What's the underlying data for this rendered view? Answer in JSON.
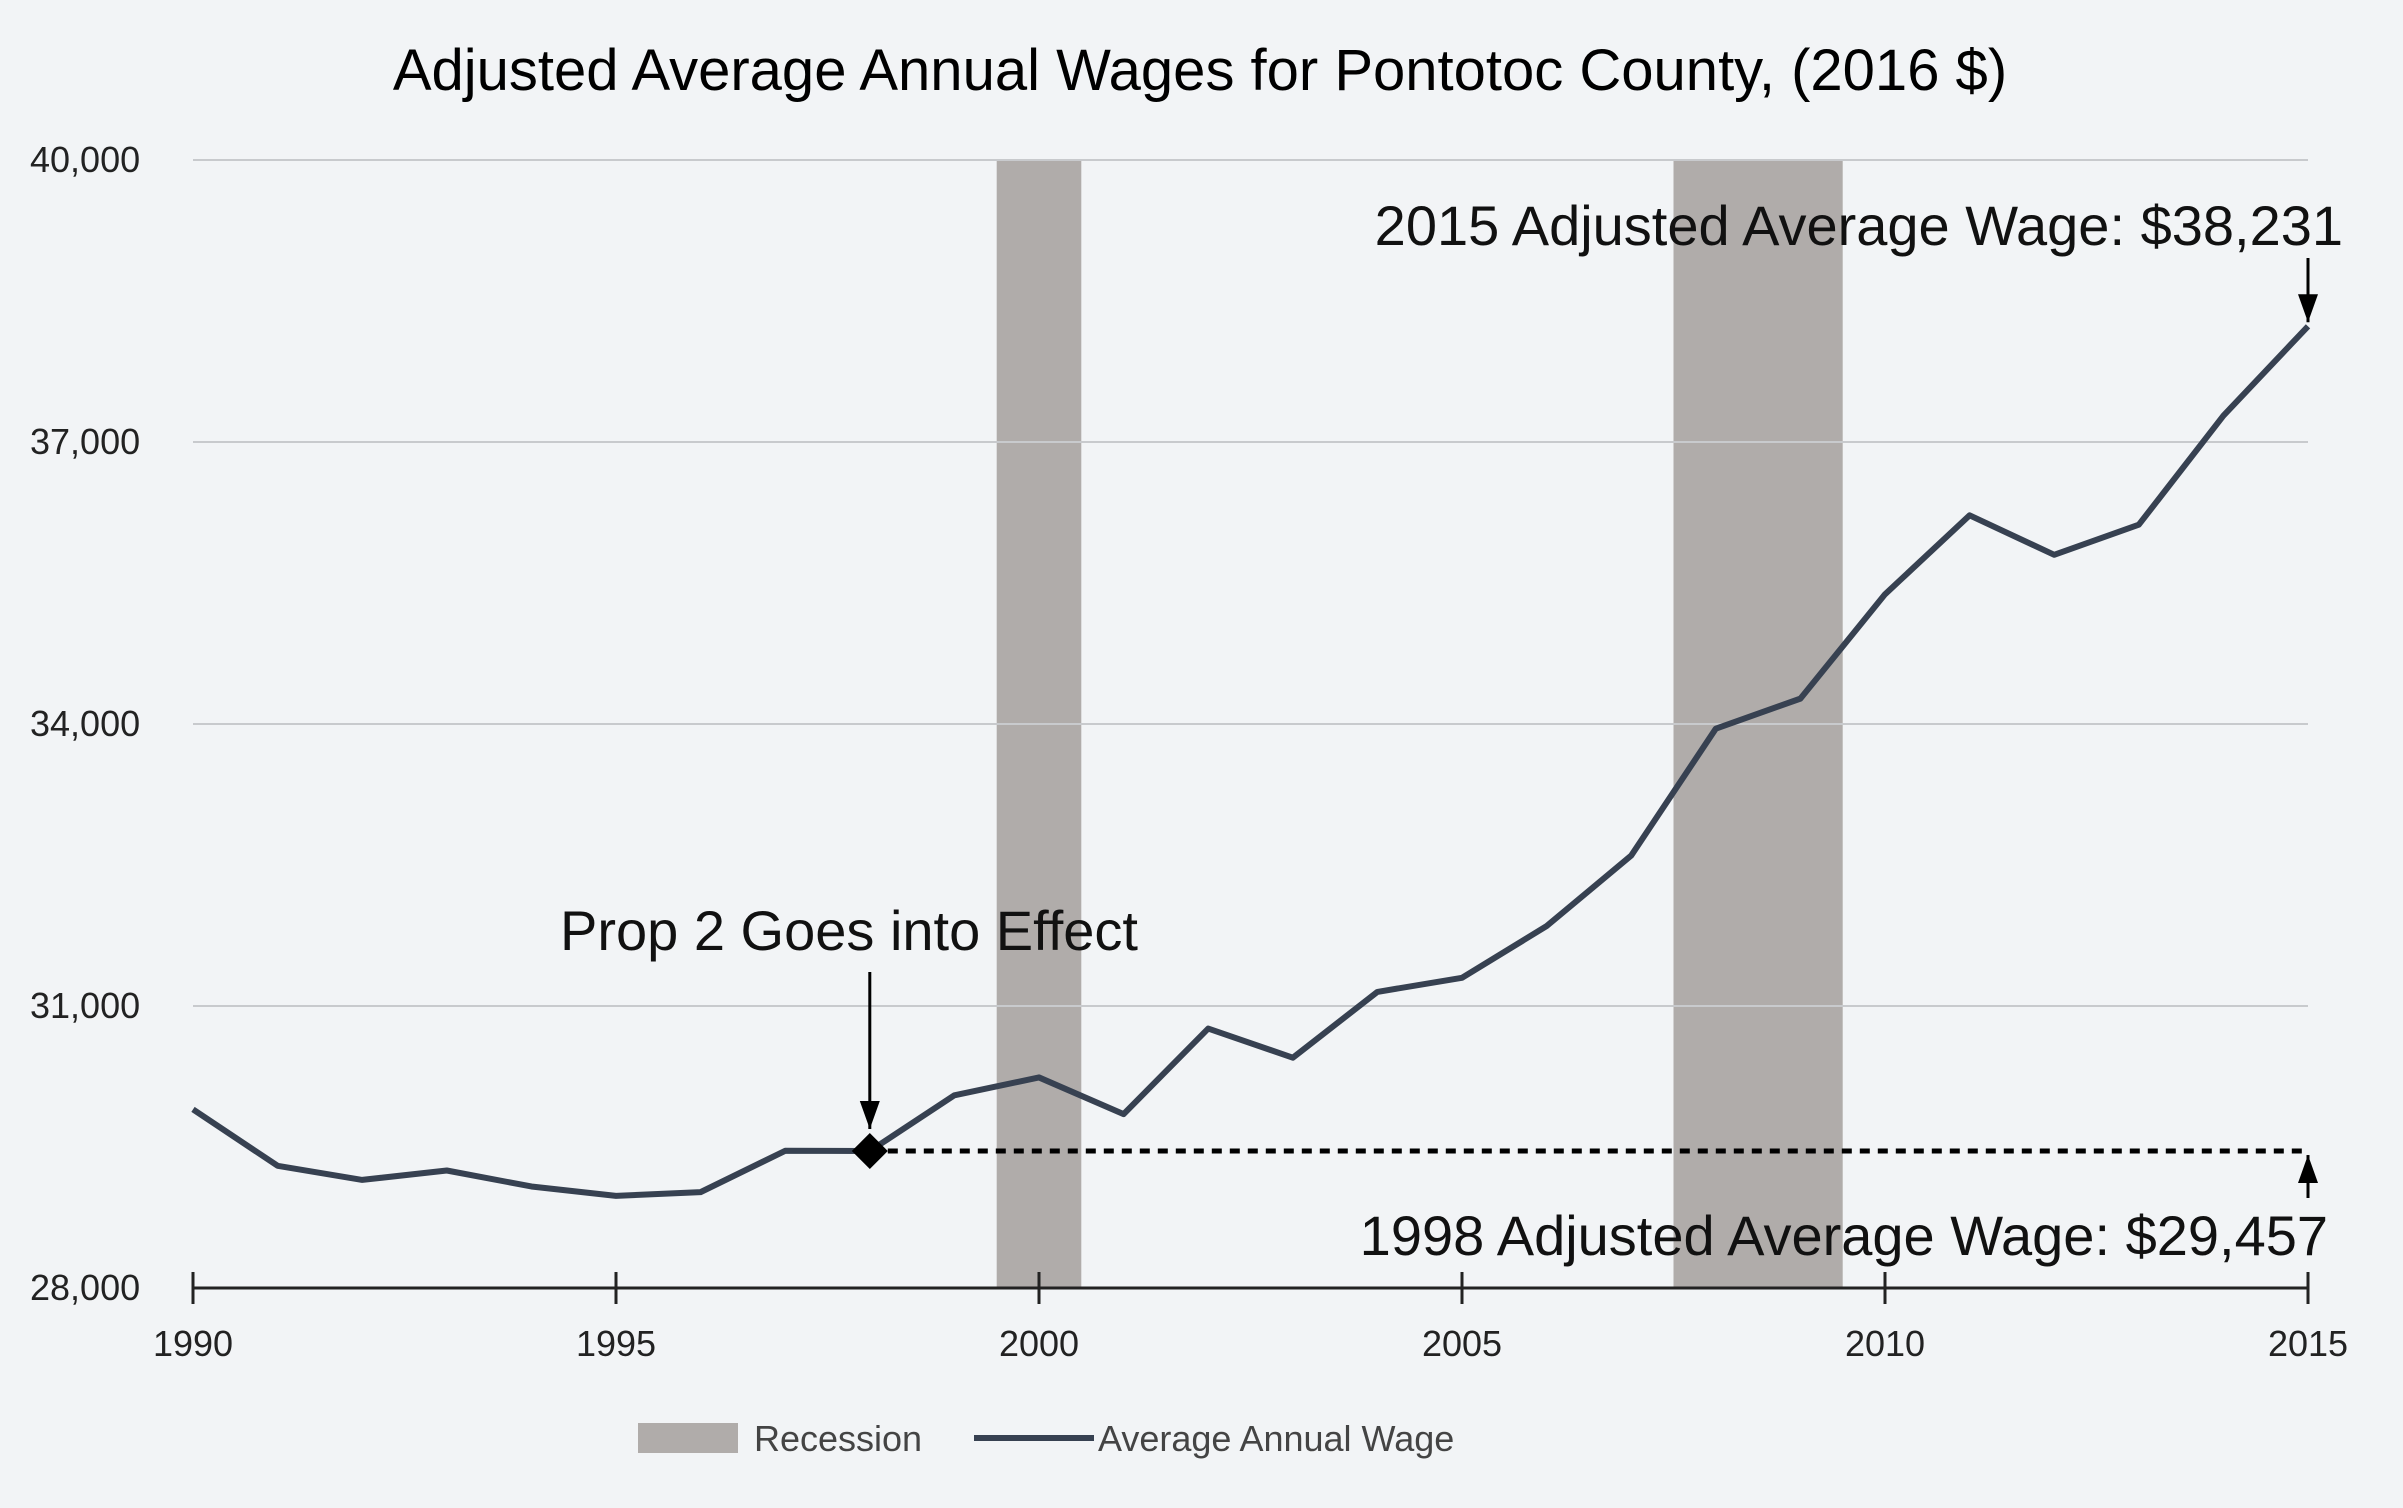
{
  "chart_data": {
    "type": "line",
    "title": "Adjusted Average Annual Wages for Pontotoc County, (2016 $)",
    "xlabel": "",
    "ylabel": "",
    "xlim": [
      1990,
      2015
    ],
    "ylim": [
      28000,
      40000
    ],
    "grid": true,
    "x_ticks": [
      1990,
      1995,
      2000,
      2005,
      2010,
      2015
    ],
    "y_ticks": [
      {
        "value": 28000,
        "label": "28,000"
      },
      {
        "value": 31000,
        "label": "31,000"
      },
      {
        "value": 34000,
        "label": "34,000"
      },
      {
        "value": 37000,
        "label": "37,000"
      },
      {
        "value": 40000,
        "label": "40,000"
      }
    ],
    "recessions": [
      {
        "start": 1999.5,
        "end": 2000.5
      },
      {
        "start": 2007.5,
        "end": 2009.5
      }
    ],
    "series": [
      {
        "name": "Average Annual Wage",
        "color": "#374151",
        "x": [
          1990,
          1991,
          1992,
          1993,
          1994,
          1995,
          1996,
          1997,
          1998,
          1999,
          2000,
          2001,
          2002,
          2003,
          2004,
          2005,
          2006,
          2007,
          2008,
          2009,
          2010,
          2011,
          2012,
          2013,
          2014,
          2015
        ],
        "y": [
          29900,
          29300,
          29150,
          29250,
          29080,
          28980,
          29020,
          29460,
          29457,
          30050,
          30240,
          29850,
          30760,
          30450,
          31150,
          31300,
          31850,
          32600,
          33950,
          34270,
          35380,
          36220,
          35800,
          36120,
          37280,
          38231
        ]
      }
    ],
    "baseline": {
      "value": 29457,
      "from": 1998,
      "to": 2015,
      "style": "dotted"
    },
    "marker": {
      "x": 1998,
      "y": 29457,
      "shape": "diamond"
    },
    "annotations": {
      "prop2": "Prop 2 Goes into Effect",
      "wage2015": "2015 Adjusted Average Wage: $38,231",
      "wage1998": "1998 Adjusted Average Wage: $29,457"
    },
    "legend": {
      "placement": "bottom-center",
      "recession_label": "Recession",
      "line_label": "Average Annual Wage"
    },
    "colors": {
      "line": "#374151",
      "recession": "#b0acaa",
      "grid": "#c8cacd",
      "background": "#f2f4f6"
    }
  }
}
